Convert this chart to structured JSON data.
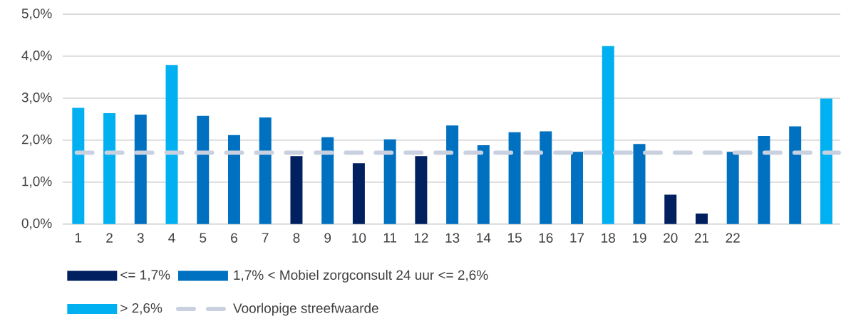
{
  "chart_data": {
    "type": "bar",
    "categories": [
      "1",
      "2",
      "3",
      "4",
      "5",
      "6",
      "7",
      "8",
      "9",
      "10",
      "11",
      "12",
      "13",
      "14",
      "15",
      "16",
      "17",
      "18",
      "19",
      "20",
      "21",
      "22",
      null,
      null,
      null
    ],
    "series": [
      {
        "name": "<= 1,7%",
        "color": "#002060",
        "values": [
          null,
          null,
          null,
          null,
          null,
          null,
          null,
          1.62,
          null,
          1.45,
          null,
          1.62,
          null,
          null,
          null,
          null,
          null,
          null,
          null,
          0.7,
          0.25,
          null,
          null,
          null,
          null
        ]
      },
      {
        "name": "1,7% < Mobiel zorgconsult 24 uur <= 2,6%",
        "color": "#0070c0",
        "values": [
          null,
          null,
          2.61,
          null,
          2.58,
          2.12,
          2.54,
          null,
          2.07,
          null,
          2.02,
          null,
          2.35,
          1.88,
          2.19,
          2.21,
          1.72,
          null,
          1.91,
          null,
          null,
          1.72,
          2.1,
          2.33,
          null
        ]
      },
      {
        "name": "> 2,6%",
        "color": "#00b0f0",
        "values": [
          2.77,
          2.64,
          null,
          3.79,
          null,
          null,
          null,
          null,
          null,
          null,
          null,
          null,
          null,
          null,
          null,
          null,
          null,
          4.24,
          null,
          null,
          null,
          null,
          null,
          null,
          2.99
        ]
      }
    ],
    "ylim": [
      0,
      5
    ],
    "yticks": [
      {
        "value": 0,
        "label": "0,0%"
      },
      {
        "value": 1,
        "label": "1,0%"
      },
      {
        "value": 2,
        "label": "2,0%"
      },
      {
        "value": 3,
        "label": "3,0%"
      },
      {
        "value": 4,
        "label": "4,0%"
      },
      {
        "value": 5,
        "label": "5,0%"
      }
    ],
    "grid": "y",
    "legend": "bottom",
    "ref_lines": [
      {
        "axis": "y",
        "value": 1.7,
        "label": "Voorlopige streefwaarde",
        "color": "#c9d0e0",
        "line_style": "dashed"
      }
    ]
  }
}
